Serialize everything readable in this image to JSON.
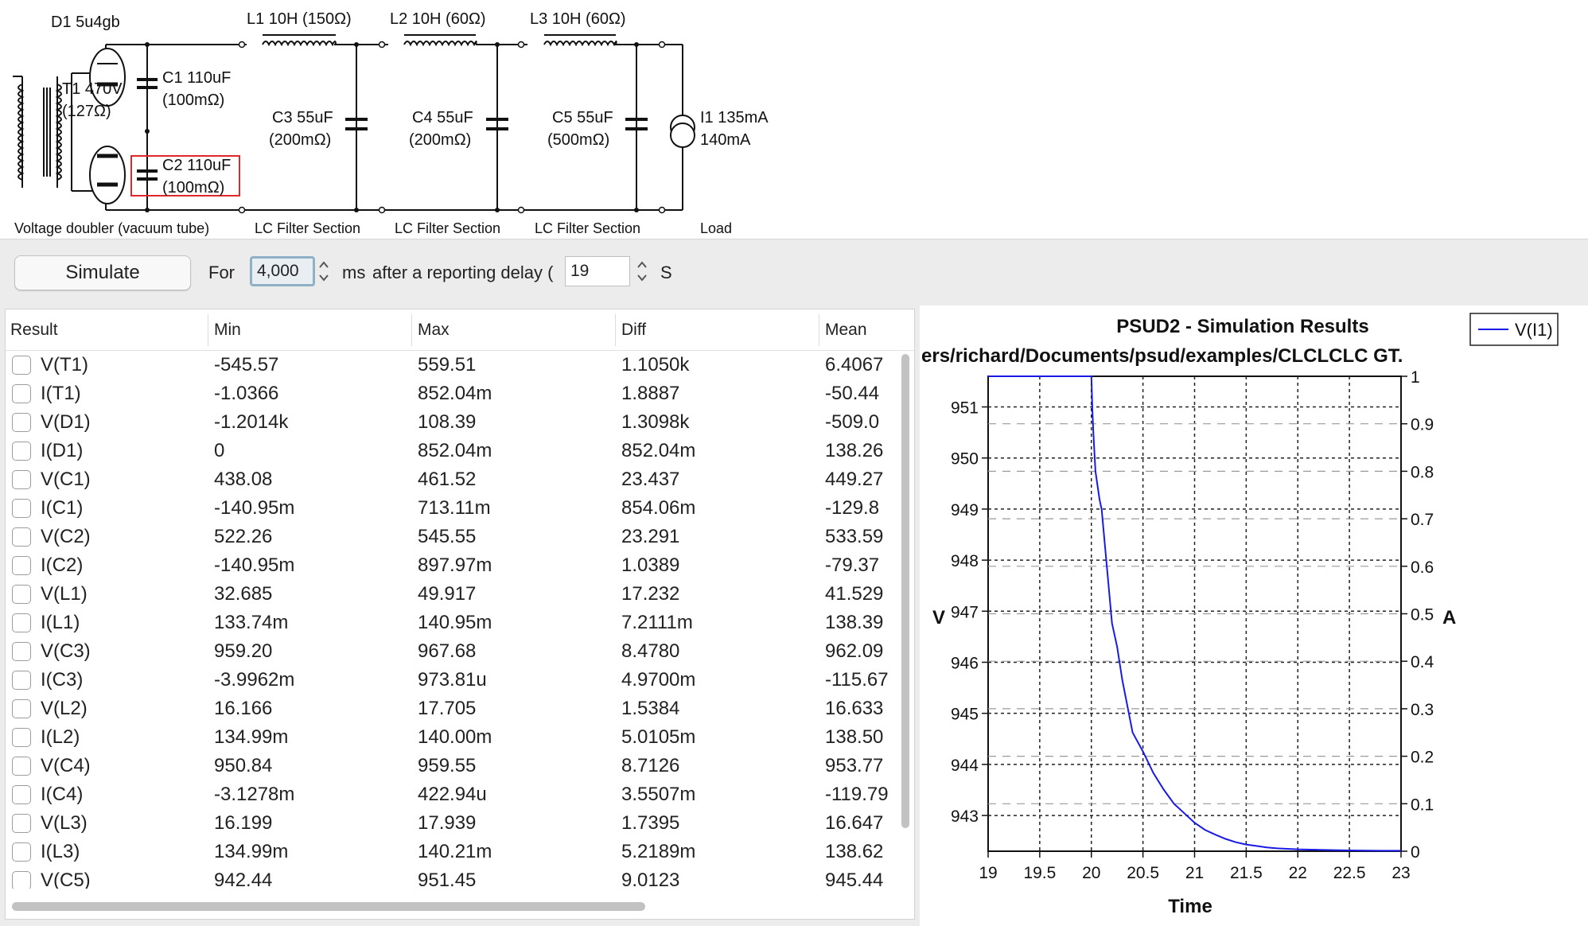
{
  "schematic": {
    "rectifier_label": "D1 5u4gb",
    "transformer_label_1": "T1 470V",
    "transformer_label_2": "(127Ω)",
    "c1_label_1": "C1 110uF",
    "c1_label_2": "(100mΩ)",
    "c2_label_1": "C2 110uF",
    "c2_label_2": "(100mΩ)",
    "l1_label": "L1 10H (150Ω)",
    "l2_label": "L2 10H (60Ω)",
    "l3_label": "L3 10H (60Ω)",
    "c3_label_1": "C3 55uF",
    "c3_label_2": "(200mΩ)",
    "c4_label_1": "C4 55uF",
    "c4_label_2": "(200mΩ)",
    "c5_label_1": "C5 55uF",
    "c5_label_2": "(500mΩ)",
    "i1_label_1": "I1 135mA",
    "i1_label_2": "140mA",
    "sections": [
      "Voltage doubler (vacuum tube)",
      "LC Filter Section",
      "LC Filter Section",
      "LC Filter Section",
      "Load"
    ],
    "colors": {
      "selection_box": "#e0282c",
      "wire": "#111111"
    }
  },
  "toolbar": {
    "simulate_label": "Simulate",
    "for_label": "For",
    "duration_value": "4,000",
    "ms_label": "ms",
    "delay_label": "after a reporting delay (",
    "delay_value": "19",
    "s_label": "S"
  },
  "table": {
    "columns": [
      "Result",
      "Min",
      "Max",
      "Diff",
      "Mean"
    ],
    "rows": [
      {
        "name": "V(T1)",
        "min": "-545.57",
        "max": "559.51",
        "diff": "1.1050k",
        "mean": "6.4067"
      },
      {
        "name": "I(T1)",
        "min": "-1.0366",
        "max": "852.04m",
        "diff": "1.8887",
        "mean": "-50.44"
      },
      {
        "name": "V(D1)",
        "min": "-1.2014k",
        "max": "108.39",
        "diff": "1.3098k",
        "mean": "-509.0"
      },
      {
        "name": "I(D1)",
        "min": "0",
        "max": "852.04m",
        "diff": "852.04m",
        "mean": "138.26"
      },
      {
        "name": "V(C1)",
        "min": "438.08",
        "max": "461.52",
        "diff": "23.437",
        "mean": "449.27"
      },
      {
        "name": "I(C1)",
        "min": "-140.95m",
        "max": "713.11m",
        "diff": "854.06m",
        "mean": "-129.8"
      },
      {
        "name": "V(C2)",
        "min": "522.26",
        "max": "545.55",
        "diff": "23.291",
        "mean": "533.59"
      },
      {
        "name": "I(C2)",
        "min": "-140.95m",
        "max": "897.97m",
        "diff": "1.0389",
        "mean": "-79.37"
      },
      {
        "name": "V(L1)",
        "min": "32.685",
        "max": "49.917",
        "diff": "17.232",
        "mean": "41.529"
      },
      {
        "name": "I(L1)",
        "min": "133.74m",
        "max": "140.95m",
        "diff": "7.2111m",
        "mean": "138.39"
      },
      {
        "name": "V(C3)",
        "min": "959.20",
        "max": "967.68",
        "diff": "8.4780",
        "mean": "962.09"
      },
      {
        "name": "I(C3)",
        "min": "-3.9962m",
        "max": "973.81u",
        "diff": "4.9700m",
        "mean": "-115.67"
      },
      {
        "name": "V(L2)",
        "min": "16.166",
        "max": "17.705",
        "diff": "1.5384",
        "mean": "16.633"
      },
      {
        "name": "I(L2)",
        "min": "134.99m",
        "max": "140.00m",
        "diff": "5.0105m",
        "mean": "138.50"
      },
      {
        "name": "V(C4)",
        "min": "950.84",
        "max": "959.55",
        "diff": "8.7126",
        "mean": "953.77"
      },
      {
        "name": "I(C4)",
        "min": "-3.1278m",
        "max": "422.94u",
        "diff": "3.5507m",
        "mean": "-119.79"
      },
      {
        "name": "V(L3)",
        "min": "16.199",
        "max": "17.939",
        "diff": "1.7395",
        "mean": "16.647"
      },
      {
        "name": "I(L3)",
        "min": "134.99m",
        "max": "140.21m",
        "diff": "5.2189m",
        "mean": "138.62"
      },
      {
        "name": "V(C5)",
        "min": "942.44",
        "max": "951.45",
        "diff": "9.0123",
        "mean": "945.44"
      }
    ]
  },
  "chart_data": {
    "type": "line",
    "title": "PSUD2 - Simulation Results",
    "subtitle": "ers/richard/Documents/psud/examples/CLCLCLC GT.",
    "xlabel": "Time",
    "ylabel": "V",
    "y2label": "A",
    "xlim": [
      19,
      23
    ],
    "ylim": [
      942.3,
      951.6
    ],
    "y2lim": [
      0,
      1
    ],
    "xticks": [
      "19",
      "19.5",
      "20",
      "20.5",
      "21",
      "21.5",
      "22",
      "22.5",
      "23"
    ],
    "yticks": [
      "943",
      "944",
      "945",
      "946",
      "947",
      "948",
      "949",
      "950",
      "951"
    ],
    "y2ticks": [
      "0",
      "0.1",
      "0.2",
      "0.3",
      "0.4",
      "0.5",
      "0.6",
      "0.7",
      "0.8",
      "0.9",
      "1"
    ],
    "grid": true,
    "legend_position": "top-right",
    "series": [
      {
        "name": "V(I1)",
        "color": "#1a1ae6",
        "axis": "right",
        "x": [
          19.0,
          19.5,
          20.0,
          20.01,
          20.02,
          20.04,
          20.06,
          20.08,
          20.1,
          20.15,
          20.2,
          20.25,
          20.3,
          20.4,
          20.5,
          20.6,
          20.7,
          20.8,
          20.9,
          21.0,
          21.1,
          21.2,
          21.3,
          21.4,
          21.5,
          21.6,
          21.7,
          21.8,
          21.9,
          22.0,
          22.2,
          22.4,
          22.6,
          22.8,
          23.0
        ],
        "y": [
          1.0,
          1.0,
          1.0,
          0.93,
          0.88,
          0.8,
          0.77,
          0.74,
          0.72,
          0.6,
          0.48,
          0.43,
          0.36,
          0.25,
          0.21,
          0.165,
          0.13,
          0.1,
          0.08,
          0.06,
          0.045,
          0.035,
          0.026,
          0.019,
          0.014,
          0.011,
          0.008,
          0.006,
          0.005,
          0.004,
          0.003,
          0.002,
          0.0015,
          0.001,
          0.001
        ]
      }
    ]
  }
}
